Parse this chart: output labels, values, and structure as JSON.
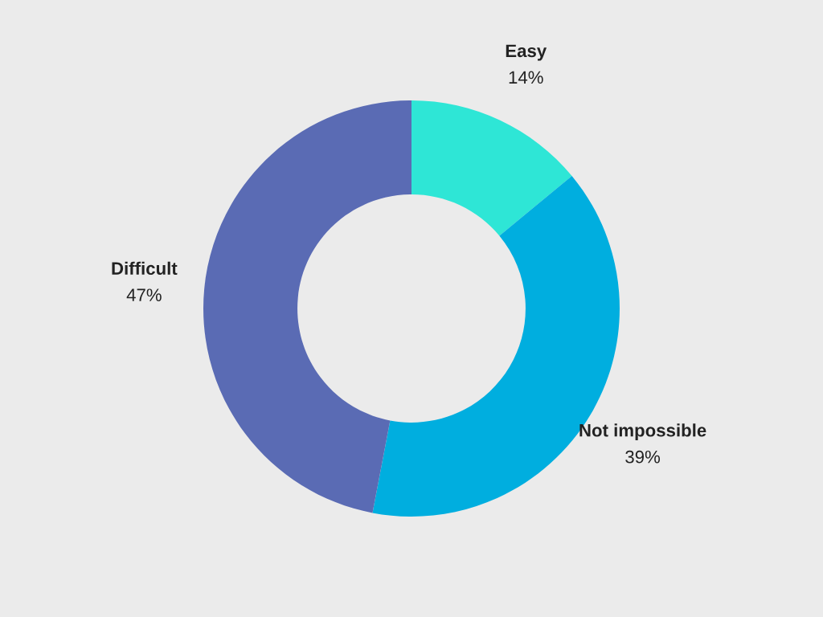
{
  "chart_data": {
    "type": "donut",
    "categories": [
      "Easy",
      "Not impossible",
      "Difficult"
    ],
    "values": [
      14,
      39,
      47
    ],
    "value_labels": [
      "14%",
      "39%",
      "47%"
    ],
    "colors": [
      "#2ee6d6",
      "#00aedf",
      "#5a6bb4"
    ]
  }
}
